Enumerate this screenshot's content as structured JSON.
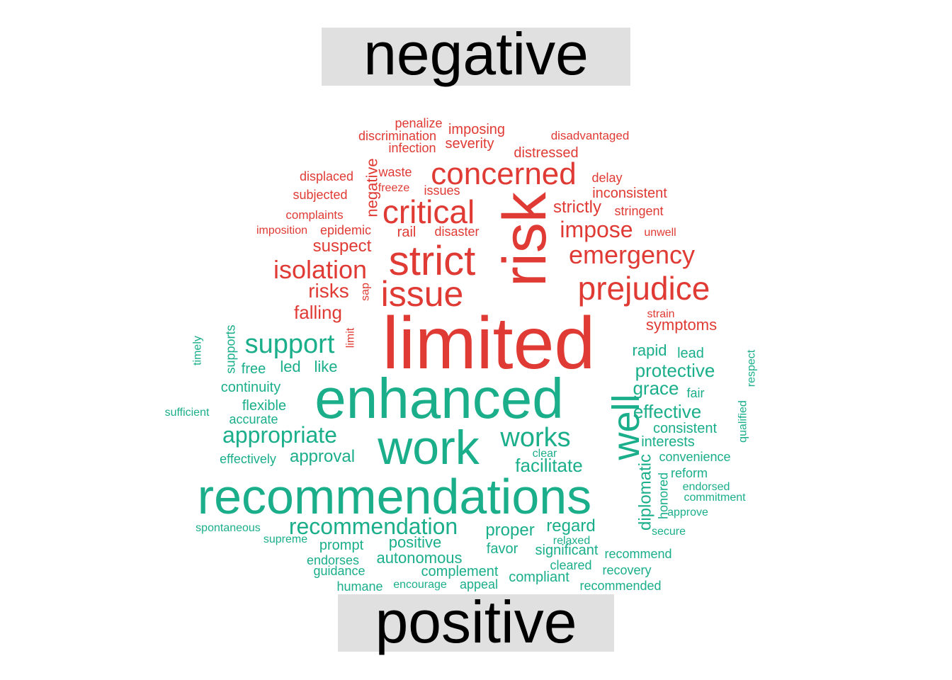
{
  "group_labels": {
    "negative": "negative",
    "positive": "positive"
  },
  "colors": {
    "negative": "#e03a34",
    "positive": "#1aae8a",
    "label_text": "#000000",
    "label_box": "#e0e0e0"
  },
  "negative_words": [
    "limited",
    "risk",
    "strict",
    "issue",
    "critical",
    "concerned",
    "prejudice",
    "emergency",
    "isolation",
    "impose",
    "strictly",
    "risks",
    "falling",
    "suspect",
    "symptoms",
    "inconsistent",
    "distressed",
    "severity",
    "imposing",
    "penalize",
    "discrimination",
    "infection",
    "disadvantaged",
    "displaced",
    "waste",
    "freeze",
    "issues",
    "delay",
    "subjected",
    "negative",
    "stringent",
    "complaints",
    "imposition",
    "epidemic",
    "rail",
    "disaster",
    "unwell",
    "sap",
    "strain",
    "limit"
  ],
  "positive_words": [
    "enhanced",
    "recommendations",
    "work",
    "well",
    "support",
    "appropriate",
    "works",
    "recommendation",
    "facilitate",
    "protective",
    "grace",
    "effective",
    "rapid",
    "lead",
    "fair",
    "consistent",
    "interests",
    "convenience",
    "reform",
    "endorsed",
    "commitment",
    "approve",
    "secure",
    "diplomatic",
    "honored",
    "qualified",
    "respect",
    "timely",
    "supports",
    "free",
    "led",
    "like",
    "continuity",
    "flexible",
    "accurate",
    "sufficient",
    "effectively",
    "approval",
    "clear",
    "spontaneous",
    "supreme",
    "proper",
    "regard",
    "relaxed",
    "significant",
    "favor",
    "positive",
    "prompt",
    "endorses",
    "guidance",
    "autonomous",
    "complement",
    "cleared",
    "recommend",
    "recovery",
    "compliant",
    "humane",
    "encourage",
    "appeal",
    "recommended"
  ]
}
